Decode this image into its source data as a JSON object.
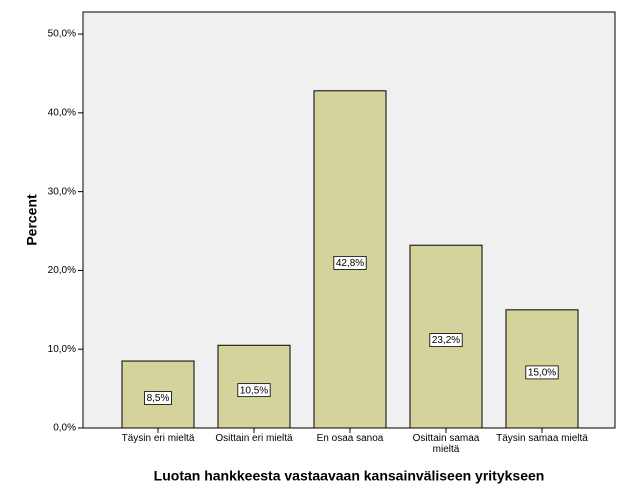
{
  "chart_data": {
    "type": "bar",
    "x_label": "Luotan hankkeesta vastaavaan kansainväliseen yritykseen",
    "y_label": "Percent",
    "categories": [
      "Täysin eri mieltä",
      "Osittain eri mieltä",
      "En osaa sanoa",
      "Osittain samaa mieltä",
      "Täysin samaa mieltä"
    ],
    "values": [
      8.5,
      10.5,
      42.8,
      23.2,
      15.0
    ],
    "value_labels": [
      "8,5%",
      "10,5%",
      "42,8%",
      "23,2%",
      "15,0%"
    ],
    "color": "#d3d39b",
    "ylim": [
      0,
      52.8
    ],
    "yticks": [
      {
        "value": 0,
        "label": "0,0%"
      },
      {
        "value": 10,
        "label": "10,0%"
      },
      {
        "value": 20,
        "label": "20,0%"
      },
      {
        "value": 30,
        "label": "30,0%"
      },
      {
        "value": 40,
        "label": "40,0%"
      },
      {
        "value": 50,
        "label": "50,0%"
      }
    ],
    "grid": false
  }
}
